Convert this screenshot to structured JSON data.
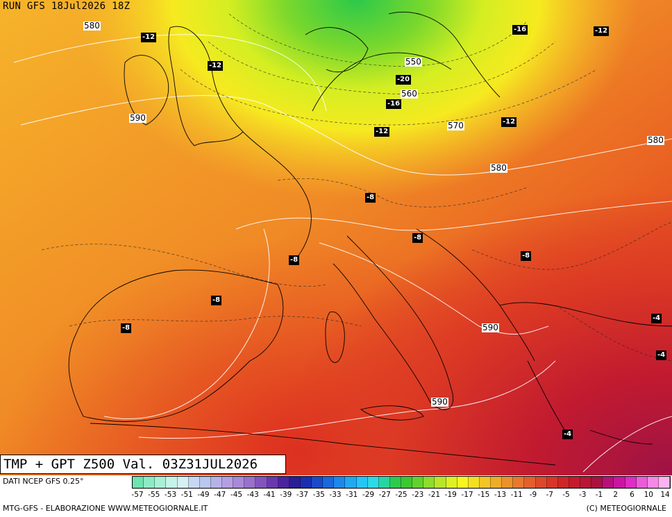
{
  "header": {
    "run": "RUN GFS 18Jul2026 18Z"
  },
  "map": {
    "title": "TMP + GPT Z500 Val. 03Z31JUL2026",
    "temperature_labels": [
      "-12",
      "-12",
      "-16",
      "-12",
      "-20",
      "-16",
      "-12",
      "-12",
      "-8",
      "-8",
      "-8",
      "-8",
      "-8",
      "-8",
      "-4",
      "-4",
      "-4"
    ],
    "height_labels": [
      "580",
      "550",
      "560",
      "590",
      "570",
      "580",
      "580",
      "590",
      "590"
    ]
  },
  "footer": {
    "source": "DATI NCEP GFS 0.25°",
    "credit_left": "MTG-GFS - ELABORAZIONE WWW.METEOGIORNALE.IT",
    "credit_right": "(C) METEOGIORNALE"
  },
  "colorbar": {
    "ticks": [
      "-57",
      "-55",
      "-53",
      "-51",
      "-49",
      "-47",
      "-45",
      "-43",
      "-41",
      "-39",
      "-37",
      "-35",
      "-33",
      "-31",
      "-29",
      "-27",
      "-25",
      "-23",
      "-21",
      "-19",
      "-17",
      "-15",
      "-13",
      "-11",
      "-9",
      "-7",
      "-5",
      "-3",
      "-1",
      "2",
      "6",
      "10",
      "14"
    ],
    "colors": [
      "#6fe3b0",
      "#8cebc5",
      "#a8f0d6",
      "#c7f4e8",
      "#d6f0f4",
      "#c6d8f3",
      "#b9c6ee",
      "#b7b1e8",
      "#b59ee2",
      "#a989d8",
      "#9a70cc",
      "#8354bf",
      "#6b37b0",
      "#4b239e",
      "#2a1d96",
      "#1b2eb0",
      "#1a49c9",
      "#1b67dd",
      "#1d88ec",
      "#20a9f3",
      "#25c6f5",
      "#2dd9e6",
      "#27d5a1",
      "#2cca4d",
      "#3cc82f",
      "#63d22d",
      "#8fdc2b",
      "#b9e628",
      "#dff023",
      "#f8f51f",
      "#f5df22",
      "#f3c525",
      "#f0ab28",
      "#ec922a",
      "#e8782b",
      "#e35f2b",
      "#de482a",
      "#d83528",
      "#cf2527",
      "#c41b2c",
      "#b81634",
      "#a9113f",
      "#b8107a",
      "#cc14a3",
      "#de2cc4",
      "#ec5bd9",
      "#f589e5",
      "#fbb2ef"
    ]
  }
}
